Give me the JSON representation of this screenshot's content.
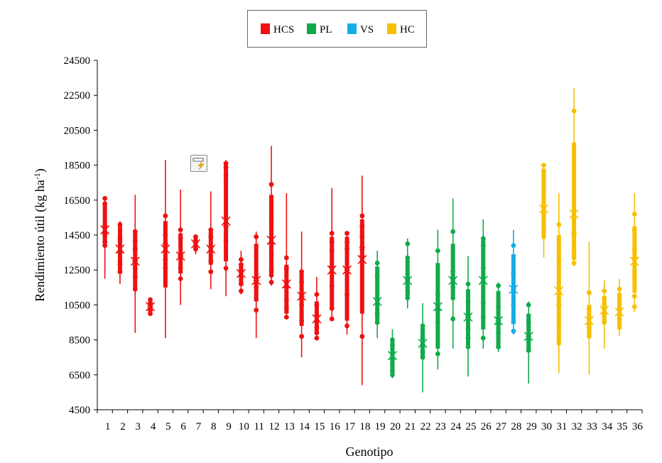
{
  "chart_data": {
    "type": "box",
    "xlabel": "Genotipo",
    "ylabel": "Rendimiento útil (kg ha",
    "ylabel_sup": "-1",
    "ylabel_end": ")",
    "ylim": [
      4500,
      24500
    ],
    "yticks": [
      4500,
      6500,
      8500,
      10500,
      12500,
      14500,
      16500,
      18500,
      20500,
      22500,
      24500
    ],
    "legend": {
      "position": "top-center",
      "entries": [
        {
          "group": "HCS",
          "label": "HCS",
          "color": "#ee1111"
        },
        {
          "group": "PL",
          "label": "PL",
          "color": "#11aa4a"
        },
        {
          "group": "VS",
          "label": "VS",
          "color": "#14aee6"
        },
        {
          "group": "HC",
          "label": "HC",
          "color": "#f6c000"
        }
      ]
    },
    "icon": "flash-chart-icon",
    "genotypes": [
      {
        "label": "1",
        "group": "HCS",
        "min": 12000,
        "q1": 14000,
        "median": 14600,
        "mean": 14800,
        "q3": 16300,
        "max": 16600,
        "points": [
          16600,
          16300,
          15000,
          14500,
          14100,
          13900
        ]
      },
      {
        "label": "2",
        "group": "HCS",
        "min": 11700,
        "q1": 12500,
        "median": 13500,
        "mean": 13700,
        "q3": 15000,
        "max": 15300,
        "points": [
          15100,
          14300,
          13500,
          13000,
          12800,
          12400
        ]
      },
      {
        "label": "3",
        "group": "HCS",
        "min": 8900,
        "q1": 11500,
        "median": 13000,
        "mean": 13000,
        "q3": 14600,
        "max": 16800,
        "points": [
          14700,
          14200,
          13700,
          13100,
          12600,
          12100,
          11400
        ]
      },
      {
        "label": "4",
        "group": "HCS",
        "min": 9900,
        "q1": 10100,
        "median": 10400,
        "mean": 10400,
        "q3": 10700,
        "max": 10900,
        "points": [
          10800,
          10600,
          10400,
          10200,
          10000
        ]
      },
      {
        "label": "5",
        "group": "HCS",
        "min": 8600,
        "q1": 11500,
        "median": 14000,
        "mean": 13700,
        "q3": 15300,
        "max": 18800,
        "points": [
          15600,
          14500,
          14000,
          13100,
          12600
        ]
      },
      {
        "label": "6",
        "group": "HCS",
        "min": 10500,
        "q1": 12300,
        "median": 13300,
        "mean": 13300,
        "q3": 14600,
        "max": 17100,
        "points": [
          14800,
          14300,
          13300,
          12600,
          12000
        ]
      },
      {
        "label": "7",
        "group": "HCS",
        "min": 13400,
        "q1": 13700,
        "median": 14100,
        "mean": 14000,
        "q3": 14300,
        "max": 14500,
        "points": [
          14400,
          14100,
          13900,
          13700
        ]
      },
      {
        "label": "8",
        "group": "HCS",
        "min": 11400,
        "q1": 12800,
        "median": 13800,
        "mean": 13700,
        "q3": 14700,
        "max": 17000,
        "points": [
          14800,
          14400,
          13800,
          13000,
          12400
        ]
      },
      {
        "label": "9",
        "group": "HCS",
        "min": 11000,
        "q1": 13000,
        "median": 15000,
        "mean": 15300,
        "q3": 18400,
        "max": 18800,
        "points": [
          18600,
          18400,
          17900,
          15200,
          14200,
          12600
        ]
      },
      {
        "label": "10",
        "group": "HCS",
        "min": 11100,
        "q1": 11600,
        "median": 12400,
        "mean": 12300,
        "q3": 12900,
        "max": 13600,
        "points": [
          13100,
          12800,
          12400,
          11700,
          11300
        ]
      },
      {
        "label": "11",
        "group": "HCS",
        "min": 8600,
        "q1": 10700,
        "median": 11900,
        "mean": 11900,
        "q3": 14000,
        "max": 14700,
        "points": [
          14400,
          11900,
          11500,
          10200
        ]
      },
      {
        "label": "12",
        "group": "HCS",
        "min": 11600,
        "q1": 12300,
        "median": 14000,
        "mean": 14200,
        "q3": 16800,
        "max": 19600,
        "points": [
          17400,
          15300,
          13400,
          12500,
          12200,
          11800
        ]
      },
      {
        "label": "13",
        "group": "HCS",
        "min": 9700,
        "q1": 10000,
        "median": 11500,
        "mean": 11700,
        "q3": 12800,
        "max": 16900,
        "points": [
          13200,
          12600,
          11800,
          10800,
          10300,
          9800
        ]
      },
      {
        "label": "14",
        "group": "HCS",
        "min": 7500,
        "q1": 9300,
        "median": 11000,
        "mean": 11000,
        "q3": 12300,
        "max": 14700,
        "points": [
          12400,
          11800,
          10500,
          9600,
          8700
        ]
      },
      {
        "label": "15",
        "group": "HCS",
        "min": 8600,
        "q1": 8900,
        "median": 9600,
        "mean": 9700,
        "q3": 10700,
        "max": 12100,
        "points": [
          11100,
          10500,
          9900,
          9200,
          8900,
          8600
        ]
      },
      {
        "label": "16",
        "group": "HCS",
        "min": 9600,
        "q1": 10300,
        "median": 12700,
        "mean": 12500,
        "q3": 14400,
        "max": 17200,
        "points": [
          14600,
          14100,
          13600,
          11600,
          10300,
          9700
        ]
      },
      {
        "label": "17",
        "group": "HCS",
        "min": 8800,
        "q1": 9600,
        "median": 12500,
        "mean": 12500,
        "q3": 14400,
        "max": 14700,
        "points": [
          14600,
          14100,
          13700,
          11100,
          9300
        ]
      },
      {
        "label": "18",
        "group": "HCS",
        "min": 5900,
        "q1": 10000,
        "median": 13800,
        "mean": 13100,
        "q3": 15400,
        "max": 17900,
        "points": [
          15600,
          15000,
          14400,
          13700,
          13300,
          8700
        ]
      },
      {
        "label": "19",
        "group": "PL",
        "min": 8600,
        "q1": 9400,
        "median": 10800,
        "mean": 10700,
        "q3": 12700,
        "max": 13600,
        "points": [
          12900,
          12200,
          10800,
          10000,
          9500
        ]
      },
      {
        "label": "20",
        "group": "PL",
        "min": 6300,
        "q1": 6600,
        "median": 7400,
        "mean": 7600,
        "q3": 8400,
        "max": 9100,
        "points": [
          8500,
          8200,
          7500,
          7100,
          6700,
          6500
        ]
      },
      {
        "label": "21",
        "group": "PL",
        "min": 10300,
        "q1": 11000,
        "median": 12000,
        "mean": 11900,
        "q3": 13100,
        "max": 14300,
        "points": [
          14000,
          13200,
          11900,
          11300,
          10900
        ]
      },
      {
        "label": "22",
        "group": "PL",
        "min": 5500,
        "q1": 7500,
        "median": 8200,
        "mean": 8300,
        "q3": 9200,
        "max": 10600,
        "points": [
          9300,
          8600,
          7800,
          7500
        ]
      },
      {
        "label": "23",
        "group": "PL",
        "min": 6800,
        "q1": 8000,
        "median": 10200,
        "mean": 10400,
        "q3": 12900,
        "max": 14800,
        "points": [
          13600,
          11100,
          10400,
          9500,
          7700
        ]
      },
      {
        "label": "24",
        "group": "PL",
        "min": 8000,
        "q1": 11000,
        "median": 12000,
        "mean": 11900,
        "q3": 14000,
        "max": 16600,
        "points": [
          14700,
          12400,
          11500,
          10900,
          9700
        ]
      },
      {
        "label": "25",
        "group": "PL",
        "min": 6400,
        "q1": 8200,
        "median": 9800,
        "mean": 9800,
        "q3": 11400,
        "max": 13300,
        "points": [
          11700,
          10700,
          9900,
          9100,
          8600,
          8100
        ]
      },
      {
        "label": "26",
        "group": "PL",
        "min": 8000,
        "q1": 9100,
        "median": 11800,
        "mean": 11900,
        "q3": 14200,
        "max": 15400,
        "points": [
          14300,
          13900,
          12600,
          10600,
          9800,
          8600
        ]
      },
      {
        "label": "27",
        "group": "PL",
        "min": 7800,
        "q1": 8000,
        "median": 9600,
        "mean": 9600,
        "q3": 11300,
        "max": 11800,
        "points": [
          11600,
          10400,
          9400,
          8900,
          8100
        ]
      },
      {
        "label": "28",
        "group": "VS",
        "min": 8800,
        "q1": 9400,
        "median": 11400,
        "mean": 11400,
        "q3": 13400,
        "max": 14800,
        "points": [
          13900,
          12300,
          10500,
          9000
        ]
      },
      {
        "label": "29",
        "group": "PL",
        "min": 6000,
        "q1": 7800,
        "median": 8700,
        "mean": 8700,
        "q3": 10000,
        "max": 10700,
        "points": [
          10500,
          9500,
          8400,
          7900
        ]
      },
      {
        "label": "30",
        "group": "HC",
        "min": 13200,
        "q1": 14500,
        "median": 16100,
        "mean": 16000,
        "q3": 18300,
        "max": 18600,
        "points": [
          18500,
          18100,
          17200,
          15900,
          14900,
          14400
        ]
      },
      {
        "label": "31",
        "group": "HC",
        "min": 6600,
        "q1": 8400,
        "median": 10500,
        "mean": 11300,
        "q3": 14500,
        "max": 16900,
        "points": [
          15100,
          13000,
          10800,
          9900,
          9300,
          8300
        ]
      },
      {
        "label": "32",
        "group": "HC",
        "min": 12700,
        "q1": 13100,
        "median": 14600,
        "mean": 15700,
        "q3": 19800,
        "max": 22900,
        "points": [
          21600,
          14500,
          13600,
          13200,
          12900
        ]
      },
      {
        "label": "33",
        "group": "HC",
        "min": 6500,
        "q1": 8700,
        "median": 9400,
        "mean": 9600,
        "q3": 10500,
        "max": 14100,
        "points": [
          11200,
          10300,
          9200,
          8900,
          8700
        ]
      },
      {
        "label": "34",
        "group": "HC",
        "min": 8000,
        "q1": 9500,
        "median": 10300,
        "mean": 10200,
        "q3": 11000,
        "max": 11900,
        "points": [
          11300,
          10900,
          10500,
          10000,
          9500
        ]
      },
      {
        "label": "35",
        "group": "HC",
        "min": 8700,
        "q1": 9300,
        "median": 10200,
        "mean": 10100,
        "q3": 11200,
        "max": 12000,
        "points": [
          11400,
          10900,
          10300,
          9700,
          9200
        ]
      },
      {
        "label": "36",
        "group": "HC",
        "min": 10100,
        "q1": 11200,
        "median": 13200,
        "mean": 13000,
        "q3": 15000,
        "max": 16900,
        "points": [
          15700,
          14800,
          13700,
          12100,
          11000,
          10400
        ]
      }
    ]
  }
}
